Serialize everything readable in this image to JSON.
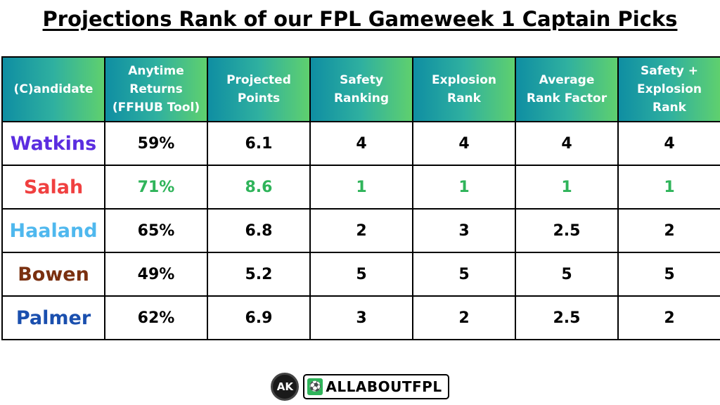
{
  "title": "Projections Rank of our FPL Gameweek 1 Captain Picks",
  "colors": {
    "header_start": "#0f8ea2",
    "header_end": "#5fd06e",
    "highlight": "#2fb45a"
  },
  "table": {
    "headers": [
      [
        "(C)andidate"
      ],
      [
        "Anytime",
        "Returns",
        "(FFHUB Tool)"
      ],
      [
        "Projected",
        "Points"
      ],
      [
        "Safety",
        "Ranking"
      ],
      [
        "Explosion",
        "Rank"
      ],
      [
        "Average",
        "Rank Factor"
      ],
      [
        "Safety +",
        "Explosion",
        "Rank"
      ]
    ],
    "rows": [
      {
        "name": "Watkins",
        "name_color": "#5b2de0",
        "anytime": "59%",
        "projected": "6.1",
        "safety": "4",
        "explosion": "4",
        "average": "4",
        "combined": "4",
        "highlight": false
      },
      {
        "name": "Salah",
        "name_color": "#f04040",
        "anytime": "71%",
        "projected": "8.6",
        "safety": "1",
        "explosion": "1",
        "average": "1",
        "combined": "1",
        "highlight": true
      },
      {
        "name": "Haaland",
        "name_color": "#4fb8ee",
        "anytime": "65%",
        "projected": "6.8",
        "safety": "2",
        "explosion": "3",
        "average": "2.5",
        "combined": "2",
        "highlight": false
      },
      {
        "name": "Bowen",
        "name_color": "#7a3010",
        "anytime": "49%",
        "projected": "5.2",
        "safety": "5",
        "explosion": "5",
        "average": "5",
        "combined": "5",
        "highlight": false
      },
      {
        "name": "Palmer",
        "name_color": "#1a4fae",
        "anytime": "62%",
        "projected": "6.9",
        "safety": "3",
        "explosion": "2",
        "average": "2.5",
        "combined": "2",
        "highlight": false
      }
    ]
  },
  "footer": {
    "ak_logo": "AK",
    "brand_icon": "pitch-icon",
    "brand_text": "ALLABOUTFPL"
  }
}
